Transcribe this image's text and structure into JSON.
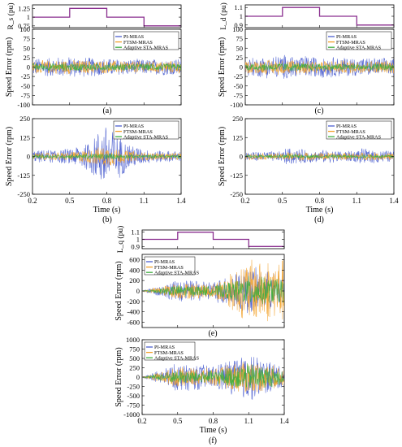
{
  "colors": {
    "pi": "#4c5fd0",
    "ftsm": "#f2a12a",
    "sta": "#3fae3f",
    "step": "#8a2f8f"
  },
  "chart_data": [
    {
      "id": "a_param",
      "type": "line",
      "ylabel": "R_s (pu)",
      "yticks": [
        "1.25",
        "1",
        "0.75"
      ],
      "ylim": [
        0.7,
        1.35
      ],
      "xlim": [
        0.2,
        1.4
      ],
      "series": [
        {
          "x": [
            0.2,
            0.5,
            0.5,
            0.8,
            0.8,
            1.1,
            1.1,
            1.4
          ],
          "values": [
            1.0,
            1.0,
            1.25,
            1.25,
            1.0,
            1.0,
            0.75,
            0.75
          ]
        }
      ]
    },
    {
      "id": "a_err",
      "type": "line",
      "ylabel": "Speed Error (rpm)",
      "yticks": [
        "100",
        "75",
        "50",
        "25",
        "0",
        "-25",
        "-50",
        "-75",
        "-100"
      ],
      "ylim": [
        -100,
        100
      ],
      "xlim": [
        0.2,
        1.4
      ],
      "legend": [
        "PI-MRAS",
        "FTSM-MRAS",
        "Adaptive STA-MRAS"
      ],
      "caption": "(a)",
      "series": [
        {
          "name": "PI-MRAS",
          "x": [
            0.2,
            0.5,
            0.8,
            1.1,
            1.4
          ],
          "values": [
            25,
            30,
            25,
            22,
            25
          ]
        },
        {
          "name": "FTSM-MRAS",
          "x": [
            0.2,
            0.5,
            0.8,
            1.1,
            1.4
          ],
          "values": [
            18,
            20,
            18,
            17,
            18
          ]
        },
        {
          "name": "Adaptive STA-MRAS",
          "x": [
            0.2,
            0.5,
            0.8,
            1.1,
            1.4
          ],
          "values": [
            10,
            11,
            10,
            10,
            10
          ]
        }
      ]
    },
    {
      "id": "b_err",
      "type": "line",
      "ylabel": "Speed Error (rpm)",
      "xlabel": "Time (s)",
      "yticks": [
        "250",
        "125",
        "0",
        "-125",
        "-250"
      ],
      "ylim": [
        -250,
        250
      ],
      "xticks": [
        "0.2",
        "0.5",
        "0.8",
        "1.1",
        "1.4"
      ],
      "xlim": [
        0.2,
        1.4
      ],
      "legend": [
        "PI-MRAS",
        "FTSM-MRAS",
        "Adaptive STA-MRAS"
      ],
      "caption": "(b)",
      "series": [
        {
          "name": "PI-MRAS",
          "x": [
            0.2,
            0.5,
            0.65,
            0.8,
            0.95,
            1.1,
            1.4
          ],
          "values": [
            40,
            55,
            110,
            240,
            110,
            50,
            35
          ]
        },
        {
          "name": "FTSM-MRAS",
          "x": [
            0.2,
            0.5,
            0.65,
            0.8,
            0.95,
            1.1,
            1.4
          ],
          "values": [
            25,
            30,
            50,
            75,
            45,
            28,
            25
          ]
        },
        {
          "name": "Adaptive STA-MRAS",
          "x": [
            0.2,
            0.5,
            0.65,
            0.8,
            0.95,
            1.1,
            1.4
          ],
          "values": [
            12,
            14,
            18,
            22,
            16,
            12,
            12
          ]
        }
      ]
    },
    {
      "id": "c_param",
      "type": "line",
      "ylabel": "L_d (pu)",
      "yticks": [
        "1.1",
        "1",
        "0.9"
      ],
      "ylim": [
        0.87,
        1.13
      ],
      "xlim": [
        0.2,
        1.4
      ],
      "series": [
        {
          "x": [
            0.2,
            0.5,
            0.5,
            0.8,
            0.8,
            1.1,
            1.1,
            1.4
          ],
          "values": [
            1.0,
            1.0,
            1.1,
            1.1,
            1.0,
            1.0,
            0.9,
            0.9
          ]
        }
      ]
    },
    {
      "id": "c_err",
      "type": "line",
      "ylabel": "Speed Error (rpm)",
      "yticks": [
        "100",
        "75",
        "50",
        "25",
        "0",
        "-25",
        "-50",
        "-75",
        "-100"
      ],
      "ylim": [
        -100,
        100
      ],
      "xlim": [
        0.2,
        1.4
      ],
      "legend": [
        "PI-MRAS",
        "FTSM-MRAS",
        "Adaptive STA-MRAS"
      ],
      "caption": "(c)",
      "series": [
        {
          "name": "PI-MRAS",
          "x": [
            0.2,
            0.5,
            0.8,
            1.1,
            1.4
          ],
          "values": [
            25,
            35,
            30,
            27,
            25
          ]
        },
        {
          "name": "FTSM-MRAS",
          "x": [
            0.2,
            0.5,
            0.8,
            1.1,
            1.4
          ],
          "values": [
            18,
            22,
            19,
            18,
            18
          ]
        },
        {
          "name": "Adaptive STA-MRAS",
          "x": [
            0.2,
            0.5,
            0.8,
            1.1,
            1.4
          ],
          "values": [
            10,
            12,
            10,
            10,
            10
          ]
        }
      ]
    },
    {
      "id": "d_err",
      "type": "line",
      "ylabel": "Speed Error (rpm)",
      "xlabel": "Time (s)",
      "yticks": [
        "250",
        "125",
        "0",
        "-125",
        "-250"
      ],
      "ylim": [
        -250,
        250
      ],
      "xticks": [
        "0.2",
        "0.5",
        "0.8",
        "1.1",
        "1.4"
      ],
      "xlim": [
        0.2,
        1.4
      ],
      "legend": [
        "PI-MRAS",
        "FTSM-MRAS",
        "Adaptive STA-MRAS"
      ],
      "caption": "(d)",
      "series": [
        {
          "name": "PI-MRAS",
          "x": [
            0.2,
            0.5,
            0.52,
            0.8,
            0.82,
            1.1,
            1.12,
            1.4
          ],
          "values": [
            35,
            35,
            60,
            40,
            45,
            40,
            55,
            40
          ]
        },
        {
          "name": "FTSM-MRAS",
          "x": [
            0.2,
            0.5,
            0.52,
            0.8,
            0.82,
            1.1,
            1.12,
            1.4
          ],
          "values": [
            22,
            22,
            35,
            25,
            28,
            24,
            30,
            24
          ]
        },
        {
          "name": "Adaptive STA-MRAS",
          "x": [
            0.2,
            0.5,
            0.52,
            0.8,
            0.82,
            1.1,
            1.12,
            1.4
          ],
          "values": [
            10,
            10,
            15,
            11,
            12,
            10,
            13,
            10
          ]
        }
      ]
    },
    {
      "id": "e_param",
      "type": "line",
      "ylabel": "L_q (pu)",
      "yticks": [
        "1.1",
        "1",
        "0.9"
      ],
      "ylim": [
        0.87,
        1.13
      ],
      "xlim": [
        0.2,
        1.4
      ],
      "series": [
        {
          "x": [
            0.2,
            0.5,
            0.5,
            0.8,
            0.8,
            1.1,
            1.1,
            1.4
          ],
          "values": [
            1.0,
            1.0,
            1.1,
            1.1,
            1.0,
            1.0,
            0.9,
            0.9
          ]
        }
      ]
    },
    {
      "id": "e_err",
      "type": "line",
      "ylabel": "Speed Error (rpm)",
      "yticks": [
        "600",
        "400",
        "200",
        "0",
        "-200",
        "-400",
        "-600"
      ],
      "ylim": [
        -700,
        700
      ],
      "xlim": [
        0.2,
        1.4
      ],
      "legend": [
        "PI-MRAS",
        "FTSM-MRAS",
        "Adaptive STA-MRAS"
      ],
      "caption": "(e)",
      "series": [
        {
          "name": "PI-MRAS",
          "x": [
            0.2,
            0.5,
            0.8,
            1.1,
            1.4
          ],
          "values": [
            10,
            220,
            200,
            500,
            300
          ]
        },
        {
          "name": "FTSM-MRAS",
          "x": [
            0.2,
            0.5,
            0.8,
            1.1,
            1.4
          ],
          "values": [
            8,
            170,
            150,
            650,
            650
          ]
        },
        {
          "name": "Adaptive STA-MRAS",
          "x": [
            0.2,
            0.5,
            0.8,
            1.1,
            1.4
          ],
          "values": [
            5,
            120,
            100,
            300,
            250
          ]
        }
      ]
    },
    {
      "id": "f_err",
      "type": "line",
      "ylabel": "Speed Error (rpm)",
      "xlabel": "Time (s)",
      "yticks": [
        "1000",
        "750",
        "500",
        "250",
        "0",
        "-250",
        "-500",
        "-750",
        "-1000"
      ],
      "ylim": [
        -1000,
        1000
      ],
      "xticks": [
        "0.2",
        "0.5",
        "0.8",
        "1.1",
        "1.4"
      ],
      "xlim": [
        0.2,
        1.4
      ],
      "legend": [
        "PI-MRAS",
        "FTSM-MRAS",
        "Adaptive STA-MRAS"
      ],
      "caption": "(f)",
      "series": [
        {
          "name": "PI-MRAS",
          "x": [
            0.2,
            0.5,
            0.8,
            1.1,
            1.4
          ],
          "values": [
            10,
            400,
            350,
            700,
            300
          ]
        },
        {
          "name": "FTSM-MRAS",
          "x": [
            0.2,
            0.5,
            0.8,
            1.1,
            1.4
          ],
          "values": [
            8,
            280,
            250,
            500,
            250
          ]
        },
        {
          "name": "Adaptive STA-MRAS",
          "x": [
            0.2,
            0.5,
            0.8,
            1.1,
            1.4
          ],
          "values": [
            5,
            200,
            180,
            400,
            220
          ]
        }
      ]
    }
  ]
}
